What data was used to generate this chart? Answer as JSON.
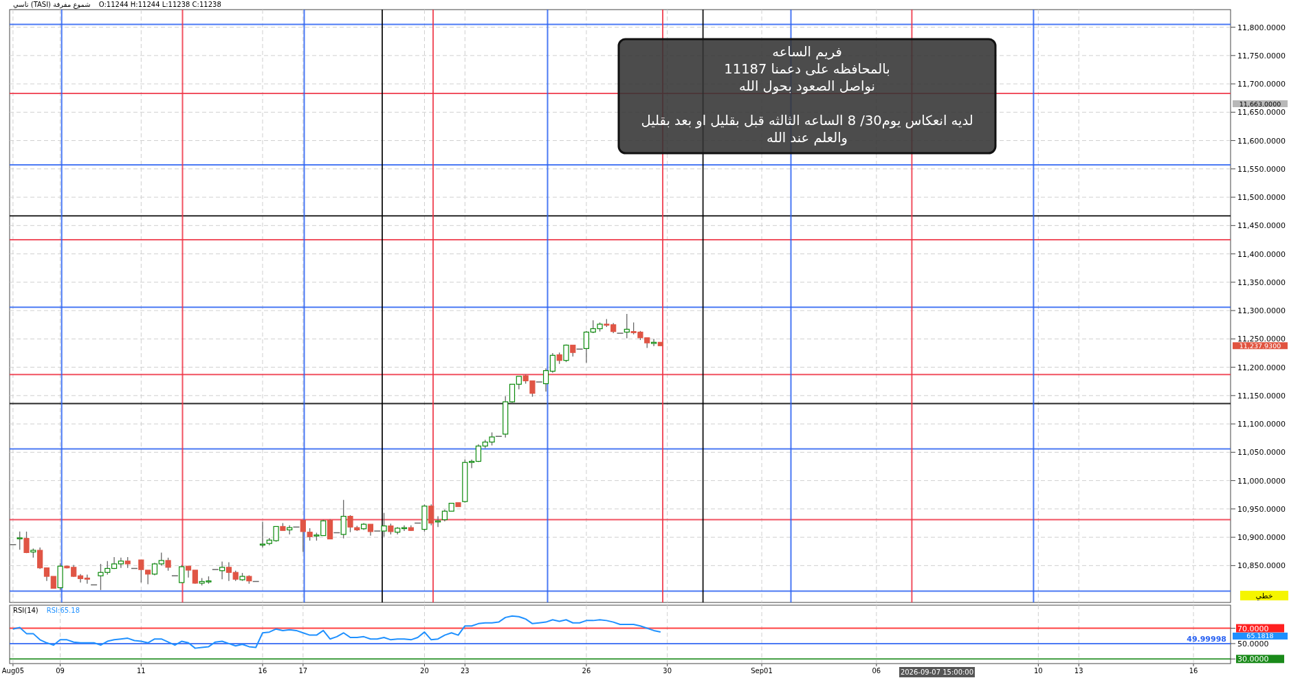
{
  "chart_data": [
    {
      "type": "candlestick",
      "title": "تاسي (TASI) شموع مفرقة",
      "subtitle": "O:11244  H:11244  L:11238  C:11238",
      "categories": [
        null,
        null,
        null,
        null,
        null,
        null,
        null,
        null,
        null,
        null,
        null,
        null,
        null,
        null,
        null,
        null,
        null,
        null,
        null,
        null,
        null,
        null,
        null,
        null,
        null,
        null,
        null,
        null,
        null,
        null,
        null,
        null,
        null,
        null,
        null,
        null,
        null,
        null,
        null,
        null,
        null,
        null,
        null,
        null,
        null,
        null,
        null,
        null,
        null,
        null,
        null,
        null,
        null,
        null,
        null,
        null,
        null,
        null,
        null,
        null,
        null,
        null,
        null,
        null,
        null,
        null,
        null,
        null,
        null,
        null,
        null,
        null,
        null,
        null,
        null,
        null,
        null,
        null,
        null,
        null,
        null,
        null,
        null,
        null,
        null,
        null,
        null,
        null,
        null,
        null,
        null,
        null,
        null,
        null,
        null,
        null,
        null,
        null,
        null,
        null,
        null,
        null,
        null,
        null,
        null,
        null,
        null,
        null,
        null,
        null,
        null,
        null,
        null,
        null,
        null,
        null,
        null,
        null,
        null,
        null,
        null,
        null,
        null,
        null,
        null,
        null,
        null,
        null,
        null,
        null,
        null,
        null,
        null,
        null,
        null,
        null,
        null,
        null,
        null,
        null,
        null,
        null,
        null,
        null,
        null,
        null,
        null,
        null,
        null,
        null,
        null,
        null,
        null,
        null,
        null,
        null,
        null,
        null,
        null,
        null,
        null,
        null,
        null,
        null,
        null,
        null,
        null,
        null,
        null,
        null,
        null,
        null,
        null,
        null,
        null,
        null,
        null,
        null,
        null,
        null,
        null
      ],
      "ohlc": [
        [
          10887,
          10887,
          10887,
          10887
        ],
        [
          10898,
          10910,
          10878,
          10899
        ],
        [
          10898,
          10910,
          10872,
          10873
        ],
        [
          10874,
          10880,
          10864,
          10877
        ],
        [
          10877,
          10882,
          10844,
          10846
        ],
        [
          10846,
          10846,
          10823,
          10831
        ],
        [
          10831,
          10831,
          10810,
          10810
        ],
        [
          10811,
          10854,
          10807,
          10849
        ],
        [
          10849,
          10850,
          10845,
          10846
        ],
        [
          10847,
          10851,
          10830,
          10831
        ],
        [
          10832,
          10835,
          10820,
          10827
        ],
        [
          10828,
          10834,
          10818,
          10826
        ],
        [
          10816,
          10816,
          10816,
          10816
        ],
        [
          10832,
          10853,
          10807,
          10838
        ],
        [
          10838,
          10858,
          10834,
          10845
        ],
        [
          10845,
          10865,
          10844,
          10853
        ],
        [
          10853,
          10864,
          10846,
          10858
        ],
        [
          10858,
          10865,
          10846,
          10853
        ],
        [
          10845,
          10845,
          10845,
          10845
        ],
        [
          10860,
          10860,
          10820,
          10843
        ],
        [
          10842,
          10842,
          10817,
          10835
        ],
        [
          10835,
          10855,
          10833,
          10853
        ],
        [
          10853,
          10873,
          10850,
          10859
        ],
        [
          10859,
          10864,
          10841,
          10847
        ],
        [
          10832,
          10832,
          10832,
          10832
        ],
        [
          10820,
          10851,
          10819,
          10848
        ],
        [
          10849,
          10849,
          10829,
          10842
        ],
        [
          10842,
          10842,
          10818,
          10819
        ],
        [
          10819,
          10828,
          10815,
          10822
        ],
        [
          10822,
          10831,
          10818,
          10823
        ],
        [
          10843,
          10843,
          10843,
          10843
        ],
        [
          10841,
          10857,
          10826,
          10847
        ],
        [
          10847,
          10856,
          10823,
          10838
        ],
        [
          10838,
          10841,
          10823,
          10826
        ],
        [
          10825,
          10837,
          10823,
          10831
        ],
        [
          10831,
          10833,
          10818,
          10823
        ],
        [
          10822,
          10822,
          10822,
          10822
        ],
        [
          10887,
          10927,
          10882,
          10888
        ],
        [
          10889,
          10899,
          10886,
          10895
        ],
        [
          10894,
          10919,
          10892,
          10919
        ],
        [
          10919,
          10925,
          10912,
          10912
        ],
        [
          10913,
          10921,
          10905,
          10917
        ],
        [
          10918,
          10918,
          10918,
          10918
        ],
        [
          10930,
          10930,
          10874,
          10910
        ],
        [
          10909,
          10916,
          10894,
          10901
        ],
        [
          10903,
          10908,
          10894,
          10904
        ],
        [
          10903,
          10931,
          10903,
          10929
        ],
        [
          10930,
          10932,
          10897,
          10897
        ],
        [
          10908,
          10908,
          10908,
          10908
        ],
        [
          10905,
          10966,
          10898,
          10937
        ],
        [
          10937,
          10939,
          10909,
          10918
        ],
        [
          10917,
          10920,
          10911,
          10913
        ],
        [
          10915,
          10925,
          10913,
          10923
        ],
        [
          10923,
          10923,
          10903,
          10910
        ],
        [
          10911,
          10911,
          10911,
          10911
        ],
        [
          10911,
          10943,
          10901,
          10920
        ],
        [
          10920,
          10924,
          10905,
          10910
        ],
        [
          10909,
          10918,
          10905,
          10916
        ],
        [
          10916,
          10921,
          10911,
          10917
        ],
        [
          10917,
          10921,
          10911,
          10912
        ],
        [
          10925,
          10925,
          10925,
          10925
        ],
        [
          10914,
          10958,
          10910,
          10955
        ],
        [
          10955,
          10958,
          10921,
          10925
        ],
        [
          10927,
          10937,
          10918,
          10929
        ],
        [
          10931,
          10949,
          10928,
          10946
        ],
        [
          10946,
          10960,
          10946,
          10960
        ],
        [
          10961,
          10961,
          10954,
          10954
        ],
        [
          10963,
          11037,
          10961,
          11032
        ],
        [
          11032,
          11037,
          11022,
          11034
        ],
        [
          11034,
          11064,
          11033,
          11061
        ],
        [
          11061,
          11072,
          11057,
          11068
        ],
        [
          11068,
          11085,
          11062,
          11077
        ],
        [
          11078,
          11078,
          11078,
          11078
        ],
        [
          11082,
          11149,
          11076,
          11139
        ],
        [
          11139,
          11170,
          11136,
          11170
        ],
        [
          11170,
          11184,
          11161,
          11184
        ],
        [
          11185,
          11187,
          11171,
          11176
        ],
        [
          11176,
          11176,
          11148,
          11154
        ],
        [
          11174,
          11174,
          11174,
          11174
        ],
        [
          11171,
          11198,
          11157,
          11194
        ],
        [
          11193,
          11225,
          11190,
          11221
        ],
        [
          11222,
          11226,
          11206,
          11212
        ],
        [
          11212,
          11240,
          11209,
          11239
        ],
        [
          11239,
          11239,
          11219,
          11226
        ],
        [
          11232,
          11232,
          11232,
          11232
        ],
        [
          11233,
          11264,
          11208,
          11262
        ],
        [
          11262,
          11283,
          11260,
          11268
        ],
        [
          11268,
          11279,
          11263,
          11276
        ],
        [
          11276,
          11285,
          11271,
          11275
        ],
        [
          11275,
          11278,
          11260,
          11263
        ],
        [
          11260,
          11260,
          11260,
          11260
        ],
        [
          11262,
          11294,
          11251,
          11267
        ],
        [
          11263,
          11279,
          11258,
          11261
        ],
        [
          11262,
          11264,
          11248,
          11252
        ],
        [
          11252,
          11252,
          11234,
          11243
        ],
        [
          11242,
          11250,
          11237,
          11244
        ],
        [
          11244,
          11244,
          11238,
          11238
        ],
        null,
        null,
        null,
        null,
        null,
        null,
        null,
        null,
        null,
        null,
        null,
        null,
        null,
        null,
        null,
        null,
        null,
        null,
        null,
        null,
        null,
        null,
        null,
        null,
        null,
        null,
        null,
        null,
        null,
        null,
        null,
        null,
        null,
        null,
        null,
        null,
        null,
        null,
        null,
        null,
        null,
        null,
        null,
        null,
        null,
        null,
        null,
        null,
        null,
        null,
        null,
        null,
        null,
        null,
        null,
        null,
        null,
        null,
        null,
        null,
        null,
        null,
        null,
        null,
        null,
        null,
        null,
        null,
        null,
        null,
        null,
        null,
        null,
        null,
        null,
        null,
        null,
        null,
        null,
        null,
        null,
        null,
        null,
        null
      ],
      "ylim": [
        10785,
        11831
      ],
      "yticks": [
        {
          "value": 10850,
          "label": "10,850.0000"
        },
        {
          "value": 10900,
          "label": "10,900.0000"
        },
        {
          "value": 10950,
          "label": "10,950.0000"
        },
        {
          "value": 11000,
          "label": "11,000.0000"
        },
        {
          "value": 11050,
          "label": "11,050.0000"
        },
        {
          "value": 11100,
          "label": "11,100.0000"
        },
        {
          "value": 11150,
          "label": "11,150.0000"
        },
        {
          "value": 11200,
          "label": "11,200.0000"
        },
        {
          "value": 11250,
          "label": "11,250.0000"
        },
        {
          "value": 11300,
          "label": "11,300.0000"
        },
        {
          "value": 11350,
          "label": "11,350.0000"
        },
        {
          "value": 11400,
          "label": "11,400.0000"
        },
        {
          "value": 11450,
          "label": "11,450.0000"
        },
        {
          "value": 11500,
          "label": "11,500.0000"
        },
        {
          "value": 11550,
          "label": "11,550.0000"
        },
        {
          "value": 11600,
          "label": "11,600.0000"
        },
        {
          "value": 11650,
          "label": "11,650.0000"
        },
        {
          "value": 11700,
          "label": "11,700.0000"
        },
        {
          "value": 11750,
          "label": "11,750.0000"
        },
        {
          "value": 11800,
          "label": "11,800.0000"
        }
      ],
      "tick_labels": "y",
      "grid": true,
      "ref_lines": [
        {
          "axis": "y",
          "value": 11805,
          "color": "#2a62f2"
        },
        {
          "axis": "y",
          "value": 11683,
          "color": "#ee3344"
        },
        {
          "axis": "y",
          "value": 11557,
          "color": "#2a62f2"
        },
        {
          "axis": "y",
          "value": 11467,
          "color": "#000000"
        },
        {
          "axis": "y",
          "value": 11425,
          "color": "#ee3344"
        },
        {
          "axis": "y",
          "value": 11306,
          "color": "#2a62f2"
        },
        {
          "axis": "y",
          "value": 11187,
          "color": "#ee3344"
        },
        {
          "axis": "y",
          "value": 11136,
          "color": "#000000"
        },
        {
          "axis": "y",
          "value": 11056,
          "color": "#2a62f2"
        },
        {
          "axis": "y",
          "value": 10931,
          "color": "#ee3344"
        },
        {
          "axis": "y",
          "value": 10805,
          "color": "#2a62f2"
        }
      ],
      "annotations": [
        "فريم الساعه\nبالمحافظه على دعمنا 11187\nنواصل الصعود بحول الله\n\nلديه انعكاس يوم30/ 8 الساعه الثالثه قبل بقليل او بعد بقليل\nوالعلم عند الله",
        "خطي",
        "2026-09-07 15:00:00",
        "11,237.9300",
        "11,663.0000"
      ]
    },
    {
      "type": "line",
      "title": "RSI(14)",
      "categories": [
        "Aug05",
        null,
        null,
        null,
        null,
        null,
        null,
        "09",
        null,
        null,
        null,
        null,
        null,
        null,
        null,
        null,
        null,
        null,
        null,
        "11",
        null,
        null,
        null,
        null,
        null,
        null,
        null,
        null,
        null,
        null,
        null,
        null,
        null,
        null,
        null,
        null,
        null,
        "16",
        null,
        null,
        null,
        null,
        null,
        "17",
        null,
        null,
        null,
        null,
        null,
        null,
        null,
        null,
        null,
        null,
        null,
        null,
        null,
        null,
        null,
        null,
        null,
        "20",
        null,
        null,
        null,
        null,
        null,
        "23",
        null,
        null,
        null,
        null,
        null,
        null,
        null,
        null,
        null,
        null,
        null,
        null,
        null,
        null,
        null,
        null,
        null,
        "26",
        null,
        null,
        null,
        null,
        null,
        null,
        null,
        null,
        null,
        null,
        null,
        "30",
        null,
        null,
        null,
        null,
        null,
        null,
        null,
        null,
        null,
        null,
        null,
        null,
        null,
        "Sep01",
        null,
        null,
        null,
        null,
        null,
        null,
        null,
        null,
        null,
        null,
        null,
        null,
        null,
        null,
        null,
        null,
        "06",
        null,
        null,
        null,
        null,
        null,
        null,
        null,
        null,
        null,
        null,
        null,
        null,
        null,
        null,
        null,
        null,
        null,
        null,
        null,
        null,
        null,
        null,
        null,
        "10",
        null,
        null,
        null,
        null,
        null,
        "13",
        null,
        null,
        null,
        null,
        null,
        null,
        null,
        null,
        null,
        null,
        null,
        null,
        null,
        null,
        null,
        null,
        "16",
        null,
        null,
        null,
        null,
        null
      ],
      "series": [
        {
          "name": "RSI:65.18",
          "color": "#1e90ff",
          "values": [
            69,
            71,
            63,
            63,
            55,
            51,
            48,
            55,
            55,
            52,
            51,
            51,
            51,
            48,
            53,
            55,
            56,
            57,
            54,
            53,
            51,
            56,
            56,
            52,
            48,
            53,
            51,
            44,
            45,
            46,
            52,
            53,
            50,
            47,
            49,
            46,
            45,
            64,
            65,
            69,
            67,
            68,
            67,
            64,
            61,
            61,
            67,
            56,
            59,
            64,
            58,
            58,
            59,
            56,
            56,
            58,
            55,
            56,
            56,
            55,
            58,
            65,
            55,
            56,
            61,
            64,
            61,
            73,
            73,
            76,
            77,
            77,
            78,
            84,
            86,
            85,
            82,
            76,
            77,
            78,
            81,
            79,
            81,
            77,
            77,
            80,
            80,
            81,
            80,
            78,
            75,
            75,
            75,
            73,
            70,
            67,
            65.18,
            null,
            null,
            null,
            null,
            null,
            null,
            null,
            null,
            null,
            null,
            null,
            null,
            null,
            null,
            null,
            null,
            null,
            null,
            null,
            null,
            null,
            null,
            null,
            null,
            null,
            null,
            null,
            null,
            null,
            null,
            null,
            null,
            null,
            null,
            null,
            null,
            null,
            null,
            null,
            null,
            null,
            null,
            null,
            null,
            null,
            null,
            null,
            null,
            null,
            null,
            null,
            null,
            null,
            null,
            null,
            null,
            null,
            null,
            null,
            null,
            null,
            null,
            null,
            null,
            null,
            null,
            null,
            null,
            null,
            null,
            null,
            null,
            null,
            null,
            null,
            null,
            null,
            null,
            null,
            null,
            null,
            null,
            null,
            null
          ]
        }
      ],
      "ylim": [
        24,
        100
      ],
      "yticks": [
        {
          "value": 30,
          "label": "30.0000"
        },
        {
          "value": 50,
          "label": "50.0000"
        },
        {
          "value": 70,
          "label": "70.0000"
        }
      ],
      "grid": "x",
      "ref_lines": [
        {
          "axis": "y",
          "value": 70,
          "color": "#ff2020"
        },
        {
          "axis": "y",
          "value": 49.99998,
          "label": "49.99998",
          "color": "#2a62f2"
        },
        {
          "axis": "y",
          "value": 30,
          "color": "#1a8a1a"
        }
      ],
      "annotations": [
        "65.1818"
      ]
    }
  ]
}
